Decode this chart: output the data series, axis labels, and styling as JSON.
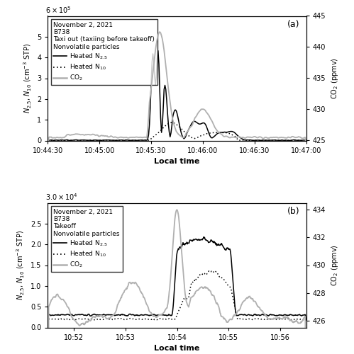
{
  "panel_a": {
    "title_lines": [
      "November 2, 2021",
      "B738",
      "Taxi out (taxiing before takeoff)",
      "Nonvolatile particles"
    ],
    "label": "(a)",
    "ylabel_left": "N$_{2.5}$, N$_{10}$ (cm$^{-3}$ STP)",
    "ylabel_right": "CO$_2$ (ppmv)",
    "xlabel": "Local time",
    "ylim_left": [
      0,
      600000.0
    ],
    "ylim_right": [
      425,
      445
    ],
    "yticks_left": [
      0,
      100000.0,
      200000.0,
      300000.0,
      400000.0,
      500000.0
    ],
    "ytick_labels_left": [
      "0",
      "1",
      "2",
      "3",
      "4",
      "5"
    ],
    "exp_label": "6 ×10$^5$",
    "yticks_right": [
      425,
      430,
      435,
      440,
      445
    ],
    "xtick_labels": [
      "10:44:30",
      "10:45:00",
      "10:45:30",
      "10:46:00",
      "10:46:30",
      "10:47:00"
    ],
    "xmin": 0,
    "xmax": 150,
    "co2_color": "#b0b0b0",
    "n25_color": "#000000",
    "n10_color": "#000000"
  },
  "panel_b": {
    "title_lines": [
      "November 2, 2021",
      "B738",
      "Takeoff",
      "Nonvolatile particles"
    ],
    "label": "(b)",
    "ylabel_left": "N$_{2.5}$, N$_{10}$ (cm$^{-3}$ STP)",
    "ylabel_right": "CO$_2$ (ppmv)",
    "xlabel": "Local time",
    "ylim_left": [
      0,
      30000.0
    ],
    "ylim_right": [
      425.5,
      434.5
    ],
    "yticks_left": [
      0,
      5000.0,
      10000.0,
      15000.0,
      20000.0,
      25000.0
    ],
    "ytick_labels_left": [
      "0.0",
      "0.5",
      "1.0",
      "1.5",
      "2.0",
      "2.5"
    ],
    "exp_label": "3.0 ×10$^4$",
    "yticks_right": [
      426,
      428,
      430,
      432,
      434
    ],
    "xtick_labels": [
      "10:52",
      "10:53",
      "10:54",
      "10:55",
      "10:56"
    ],
    "xmin": 0,
    "xmax": 300,
    "co2_color": "#b0b0b0",
    "n25_color": "#000000",
    "n10_color": "#000000"
  },
  "legend": {
    "n25_label": "Heated N$_{2.5}$",
    "n10_label": "Heated N$_{10}$",
    "co2_label": "CO$_2$"
  }
}
